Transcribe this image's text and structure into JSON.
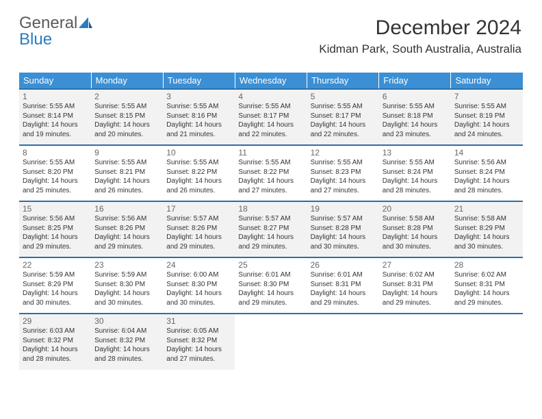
{
  "logo": {
    "text1": "General",
    "text2": "Blue"
  },
  "title": "December 2024",
  "subtitle": "Kidman Park, South Australia, Australia",
  "colors": {
    "header_bg": "#3b8fd4",
    "header_text": "#ffffff",
    "row_border": "#2b6fa8",
    "alt_row_bg": "#f2f2f2",
    "logo_gray": "#5a5a5a",
    "logo_blue": "#2b7cc0"
  },
  "typography": {
    "title_fontsize": 30,
    "subtitle_fontsize": 17,
    "header_fontsize": 13,
    "daynum_fontsize": 12,
    "dayinfo_fontsize": 10
  },
  "headers": [
    "Sunday",
    "Monday",
    "Tuesday",
    "Wednesday",
    "Thursday",
    "Friday",
    "Saturday"
  ],
  "weeks": [
    [
      {
        "n": "1",
        "sr": "5:55 AM",
        "ss": "8:14 PM",
        "dl": "14 hours and 19 minutes."
      },
      {
        "n": "2",
        "sr": "5:55 AM",
        "ss": "8:15 PM",
        "dl": "14 hours and 20 minutes."
      },
      {
        "n": "3",
        "sr": "5:55 AM",
        "ss": "8:16 PM",
        "dl": "14 hours and 21 minutes."
      },
      {
        "n": "4",
        "sr": "5:55 AM",
        "ss": "8:17 PM",
        "dl": "14 hours and 22 minutes."
      },
      {
        "n": "5",
        "sr": "5:55 AM",
        "ss": "8:17 PM",
        "dl": "14 hours and 22 minutes."
      },
      {
        "n": "6",
        "sr": "5:55 AM",
        "ss": "8:18 PM",
        "dl": "14 hours and 23 minutes."
      },
      {
        "n": "7",
        "sr": "5:55 AM",
        "ss": "8:19 PM",
        "dl": "14 hours and 24 minutes."
      }
    ],
    [
      {
        "n": "8",
        "sr": "5:55 AM",
        "ss": "8:20 PM",
        "dl": "14 hours and 25 minutes."
      },
      {
        "n": "9",
        "sr": "5:55 AM",
        "ss": "8:21 PM",
        "dl": "14 hours and 26 minutes."
      },
      {
        "n": "10",
        "sr": "5:55 AM",
        "ss": "8:22 PM",
        "dl": "14 hours and 26 minutes."
      },
      {
        "n": "11",
        "sr": "5:55 AM",
        "ss": "8:22 PM",
        "dl": "14 hours and 27 minutes."
      },
      {
        "n": "12",
        "sr": "5:55 AM",
        "ss": "8:23 PM",
        "dl": "14 hours and 27 minutes."
      },
      {
        "n": "13",
        "sr": "5:55 AM",
        "ss": "8:24 PM",
        "dl": "14 hours and 28 minutes."
      },
      {
        "n": "14",
        "sr": "5:56 AM",
        "ss": "8:24 PM",
        "dl": "14 hours and 28 minutes."
      }
    ],
    [
      {
        "n": "15",
        "sr": "5:56 AM",
        "ss": "8:25 PM",
        "dl": "14 hours and 29 minutes."
      },
      {
        "n": "16",
        "sr": "5:56 AM",
        "ss": "8:26 PM",
        "dl": "14 hours and 29 minutes."
      },
      {
        "n": "17",
        "sr": "5:57 AM",
        "ss": "8:26 PM",
        "dl": "14 hours and 29 minutes."
      },
      {
        "n": "18",
        "sr": "5:57 AM",
        "ss": "8:27 PM",
        "dl": "14 hours and 29 minutes."
      },
      {
        "n": "19",
        "sr": "5:57 AM",
        "ss": "8:28 PM",
        "dl": "14 hours and 30 minutes."
      },
      {
        "n": "20",
        "sr": "5:58 AM",
        "ss": "8:28 PM",
        "dl": "14 hours and 30 minutes."
      },
      {
        "n": "21",
        "sr": "5:58 AM",
        "ss": "8:29 PM",
        "dl": "14 hours and 30 minutes."
      }
    ],
    [
      {
        "n": "22",
        "sr": "5:59 AM",
        "ss": "8:29 PM",
        "dl": "14 hours and 30 minutes."
      },
      {
        "n": "23",
        "sr": "5:59 AM",
        "ss": "8:30 PM",
        "dl": "14 hours and 30 minutes."
      },
      {
        "n": "24",
        "sr": "6:00 AM",
        "ss": "8:30 PM",
        "dl": "14 hours and 30 minutes."
      },
      {
        "n": "25",
        "sr": "6:01 AM",
        "ss": "8:30 PM",
        "dl": "14 hours and 29 minutes."
      },
      {
        "n": "26",
        "sr": "6:01 AM",
        "ss": "8:31 PM",
        "dl": "14 hours and 29 minutes."
      },
      {
        "n": "27",
        "sr": "6:02 AM",
        "ss": "8:31 PM",
        "dl": "14 hours and 29 minutes."
      },
      {
        "n": "28",
        "sr": "6:02 AM",
        "ss": "8:31 PM",
        "dl": "14 hours and 29 minutes."
      }
    ],
    [
      {
        "n": "29",
        "sr": "6:03 AM",
        "ss": "8:32 PM",
        "dl": "14 hours and 28 minutes."
      },
      {
        "n": "30",
        "sr": "6:04 AM",
        "ss": "8:32 PM",
        "dl": "14 hours and 28 minutes."
      },
      {
        "n": "31",
        "sr": "6:05 AM",
        "ss": "8:32 PM",
        "dl": "14 hours and 27 minutes."
      },
      null,
      null,
      null,
      null
    ]
  ],
  "labels": {
    "sunrise": "Sunrise:",
    "sunset": "Sunset:",
    "daylight": "Daylight:"
  }
}
